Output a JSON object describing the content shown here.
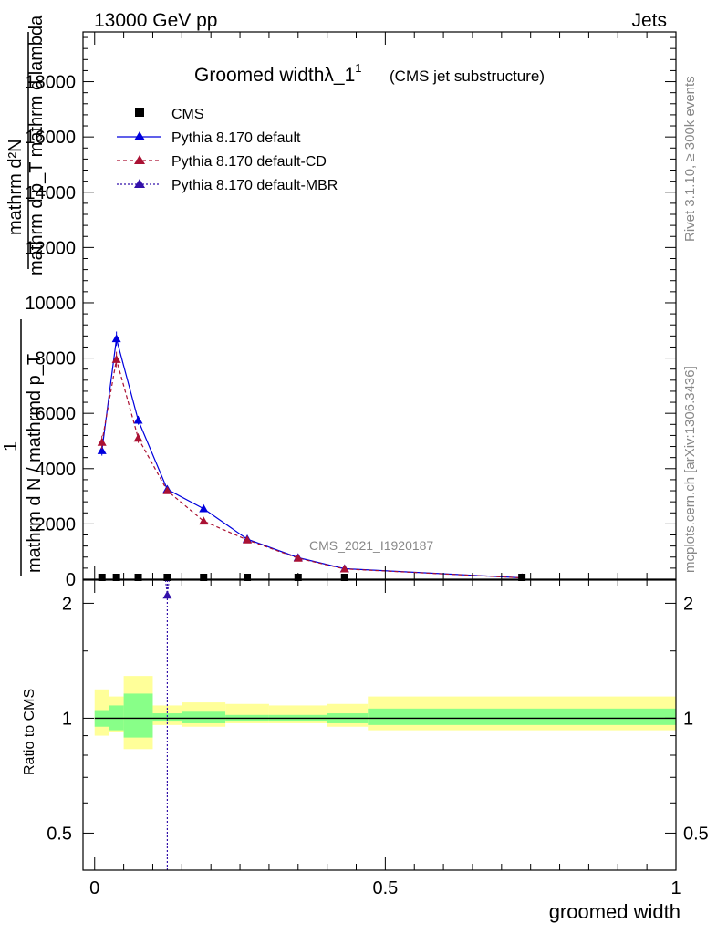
{
  "header": {
    "left": "13000 GeV pp",
    "right": "Jets"
  },
  "side_labels": {
    "rivet": "Rivet 3.1.10, ≥ 300k events",
    "mcplots": "mcplots.cern.ch [arXiv:1306.3436]"
  },
  "chart_data": {
    "type": "line",
    "title": "Groomed widthλ_1",
    "title_sup": "1",
    "subtitle": "(CMS jet substructure)",
    "watermark": "CMS_2021_I1920187",
    "xlabel": "groomed width",
    "ylabel_top": {
      "numerator": "mathrm d²N",
      "denominator": "mathrm d p_T mathrm d lambda"
    },
    "ylabel_bottom": {
      "numerator": "1",
      "denominator": "mathrm d N / mathrmd p_T"
    },
    "ratio_ylabel": "Ratio to CMS",
    "xlim": [
      -0.02,
      1.0
    ],
    "ylim_main": [
      0,
      19800
    ],
    "yticks_main": [
      {
        "value": 0,
        "label": "0"
      },
      {
        "value": 2000,
        "label": "2000"
      },
      {
        "value": 4000,
        "label": "4000"
      },
      {
        "value": 6000,
        "label": "6000"
      },
      {
        "value": 8000,
        "label": "8000"
      },
      {
        "value": 10000,
        "label": "10000"
      },
      {
        "value": 12000,
        "label": "12000"
      },
      {
        "value": 14000,
        "label": "14000"
      },
      {
        "value": 16000,
        "label": "16000"
      },
      {
        "value": 18000,
        "label": "18000"
      }
    ],
    "ylim_ratio": [
      0.4,
      2.3
    ],
    "yticks_ratio": [
      {
        "value": 0.5,
        "label": "0.5"
      },
      {
        "value": 1,
        "label": "1"
      },
      {
        "value": 2,
        "label": "2"
      }
    ],
    "xticks": [
      {
        "value": 0,
        "label": "0"
      },
      {
        "value": 0.5,
        "label": "0.5"
      },
      {
        "value": 1,
        "label": "1"
      }
    ],
    "bins": [
      {
        "lo": 0.0,
        "hi": 0.025
      },
      {
        "lo": 0.025,
        "hi": 0.05
      },
      {
        "lo": 0.05,
        "hi": 0.1
      },
      {
        "lo": 0.1,
        "hi": 0.15
      },
      {
        "lo": 0.15,
        "hi": 0.225
      },
      {
        "lo": 0.225,
        "hi": 0.3
      },
      {
        "lo": 0.3,
        "hi": 0.4
      },
      {
        "lo": 0.4,
        "hi": 0.47
      },
      {
        "lo": 0.47,
        "hi": 1.0
      }
    ],
    "cms": {
      "name": "CMS",
      "x": [
        0.0125,
        0.0375,
        0.075,
        0.125,
        0.1875,
        0.2625,
        0.35,
        0.43,
        0.735
      ],
      "y": [
        0,
        0,
        0,
        0,
        0,
        0,
        0,
        0,
        0
      ]
    },
    "band": {
      "inner": [
        [
          0.95,
          1.05
        ],
        [
          0.93,
          1.08
        ],
        [
          0.89,
          1.16
        ],
        [
          0.98,
          1.03
        ],
        [
          0.97,
          1.04
        ],
        [
          0.98,
          1.02
        ],
        [
          0.98,
          1.02
        ],
        [
          0.97,
          1.03
        ],
        [
          0.96,
          1.06
        ]
      ],
      "outer": [
        [
          0.9,
          1.19
        ],
        [
          0.92,
          1.14
        ],
        [
          0.83,
          1.29
        ],
        [
          0.96,
          1.08
        ],
        [
          0.95,
          1.1
        ],
        [
          0.97,
          1.09
        ],
        [
          0.97,
          1.08
        ],
        [
          0.95,
          1.09
        ],
        [
          0.93,
          1.14
        ]
      ]
    },
    "series": [
      {
        "name": "Pythia 8.170 default",
        "color": "#0000dd",
        "dash": "",
        "x": [
          0.0125,
          0.0375,
          0.075,
          0.125,
          0.1875,
          0.2625,
          0.35,
          0.43,
          0.735
        ],
        "y": [
          4650,
          8700,
          5750,
          3250,
          2550,
          1450,
          780,
          380,
          50
        ],
        "err": [
          180,
          260,
          160,
          100,
          80,
          50,
          30,
          20,
          8
        ]
      },
      {
        "name": "Pythia 8.170 default-CD",
        "color": "#aa1133",
        "dash": "4,3",
        "x": [
          0.0125,
          0.0375,
          0.075,
          0.125,
          0.1875,
          0.2625,
          0.35,
          0.43,
          0.735
        ],
        "y": [
          4950,
          7950,
          5100,
          3200,
          2100,
          1420,
          760,
          370,
          48
        ],
        "err": [
          240,
          280,
          170,
          110,
          80,
          50,
          30,
          20,
          8
        ]
      },
      {
        "name": "Pythia 8.170 default-MBR",
        "color": "#3311aa",
        "dash": "2,2",
        "x": [
          0.125
        ],
        "y": [
          0
        ],
        "ratio_y": [
          2.1
        ]
      }
    ]
  }
}
